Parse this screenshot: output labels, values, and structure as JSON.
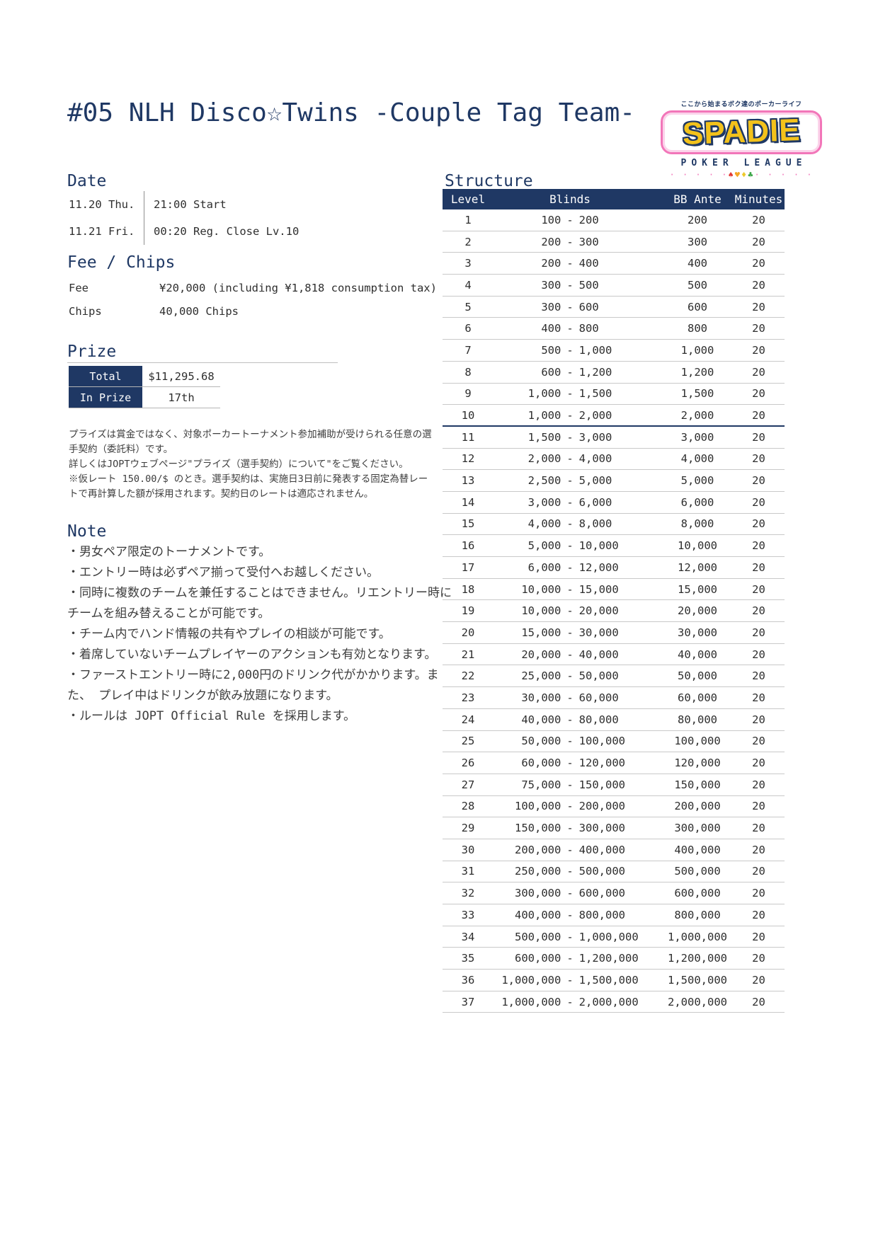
{
  "title": "#05 NLH Disco☆Twins -Couple Tag Team-",
  "colors": {
    "navy": "#1f3864",
    "logo_pink": "#f276b9",
    "logo_yellow": "#f3c21b",
    "row_line_gray": "#c9c9c9",
    "suit_spade": "#e23b34",
    "suit_heart": "#f5a623",
    "suit_diamond": "#edc92c",
    "suit_club": "#3aa546"
  },
  "logo": {
    "tagline": "ここから始まるボク達のポーカーライフ",
    "brand": "SPADIE",
    "subtitle": "POKER LEAGUE",
    "dots_left": "· · · · ·",
    "dots_right": "· · · · ·",
    "suits": [
      {
        "glyph": "♠",
        "color": "#e23b34"
      },
      {
        "glyph": "♥",
        "color": "#f5a623"
      },
      {
        "glyph": "♦",
        "color": "#edc92c"
      },
      {
        "glyph": "♣",
        "color": "#3aa546"
      }
    ]
  },
  "date": {
    "heading": "Date",
    "rows": [
      {
        "date": "11.20 Thu.",
        "time": "21:00 Start"
      },
      {
        "date": "11.21 Fri.",
        "time": "00:20 Reg. Close Lv.10"
      }
    ]
  },
  "fee_chips": {
    "heading": "Fee / Chips",
    "rows": [
      {
        "label": "Fee",
        "value": "¥20,000 (including ¥1,818 consumption tax)"
      },
      {
        "label": "Chips",
        "value": "40,000 Chips"
      }
    ]
  },
  "prize": {
    "heading": "Prize",
    "rows": [
      {
        "label": "Total",
        "value": "$11,295.68"
      },
      {
        "label": "In Prize",
        "value": "17th"
      }
    ],
    "disclaimer": [
      "プライズは賞金ではなく、対象ポーカートーナメント参加補助が受けられる任意の選手契約（委託料）です。",
      "詳しくはJOPTウェブページ\"プライズ（選手契約）について\"をご覧ください。",
      "※仮レート 150.00/$ のとき。選手契約は、実施日3日前に発表する固定為替レートで再計算した額が採用されます。契約日のレートは適応されません。"
    ]
  },
  "note": {
    "heading": "Note",
    "items": [
      "・男女ペア限定のトーナメントです。",
      "・エントリー時は必ずペア揃って受付へお越しください。",
      "・同時に複数のチームを兼任することはできません。リエントリー時にチームを組み替えることが可能です。",
      "・チーム内でハンド情報の共有やプレイの相談が可能です。",
      "・着席していないチームプレイヤーのアクションも有効となります。",
      "・ファーストエントリー時に2,000円のドリンク代がかかります。また、 プレイ中はドリンクが飲み放題になります。",
      "・ルールは JOPT Official Rule を採用します。"
    ]
  },
  "structure": {
    "heading": "Structure",
    "columns": {
      "level": "Level",
      "blinds": "Blinds",
      "ante": "BB Ante",
      "minutes": "Minutes"
    },
    "blinds_separator": "-",
    "reg_close_after_level": 10,
    "levels": [
      {
        "level": "1",
        "sb": "100",
        "bb": "200",
        "ante": "200",
        "minutes": "20"
      },
      {
        "level": "2",
        "sb": "200",
        "bb": "300",
        "ante": "300",
        "minutes": "20"
      },
      {
        "level": "3",
        "sb": "200",
        "bb": "400",
        "ante": "400",
        "minutes": "20"
      },
      {
        "level": "4",
        "sb": "300",
        "bb": "500",
        "ante": "500",
        "minutes": "20"
      },
      {
        "level": "5",
        "sb": "300",
        "bb": "600",
        "ante": "600",
        "minutes": "20"
      },
      {
        "level": "6",
        "sb": "400",
        "bb": "800",
        "ante": "800",
        "minutes": "20"
      },
      {
        "level": "7",
        "sb": "500",
        "bb": "1,000",
        "ante": "1,000",
        "minutes": "20"
      },
      {
        "level": "8",
        "sb": "600",
        "bb": "1,200",
        "ante": "1,200",
        "minutes": "20"
      },
      {
        "level": "9",
        "sb": "1,000",
        "bb": "1,500",
        "ante": "1,500",
        "minutes": "20"
      },
      {
        "level": "10",
        "sb": "1,000",
        "bb": "2,000",
        "ante": "2,000",
        "minutes": "20"
      },
      {
        "level": "11",
        "sb": "1,500",
        "bb": "3,000",
        "ante": "3,000",
        "minutes": "20"
      },
      {
        "level": "12",
        "sb": "2,000",
        "bb": "4,000",
        "ante": "4,000",
        "minutes": "20"
      },
      {
        "level": "13",
        "sb": "2,500",
        "bb": "5,000",
        "ante": "5,000",
        "minutes": "20"
      },
      {
        "level": "14",
        "sb": "3,000",
        "bb": "6,000",
        "ante": "6,000",
        "minutes": "20"
      },
      {
        "level": "15",
        "sb": "4,000",
        "bb": "8,000",
        "ante": "8,000",
        "minutes": "20"
      },
      {
        "level": "16",
        "sb": "5,000",
        "bb": "10,000",
        "ante": "10,000",
        "minutes": "20"
      },
      {
        "level": "17",
        "sb": "6,000",
        "bb": "12,000",
        "ante": "12,000",
        "minutes": "20"
      },
      {
        "level": "18",
        "sb": "10,000",
        "bb": "15,000",
        "ante": "15,000",
        "minutes": "20"
      },
      {
        "level": "19",
        "sb": "10,000",
        "bb": "20,000",
        "ante": "20,000",
        "minutes": "20"
      },
      {
        "level": "20",
        "sb": "15,000",
        "bb": "30,000",
        "ante": "30,000",
        "minutes": "20"
      },
      {
        "level": "21",
        "sb": "20,000",
        "bb": "40,000",
        "ante": "40,000",
        "minutes": "20"
      },
      {
        "level": "22",
        "sb": "25,000",
        "bb": "50,000",
        "ante": "50,000",
        "minutes": "20"
      },
      {
        "level": "23",
        "sb": "30,000",
        "bb": "60,000",
        "ante": "60,000",
        "minutes": "20"
      },
      {
        "level": "24",
        "sb": "40,000",
        "bb": "80,000",
        "ante": "80,000",
        "minutes": "20"
      },
      {
        "level": "25",
        "sb": "50,000",
        "bb": "100,000",
        "ante": "100,000",
        "minutes": "20"
      },
      {
        "level": "26",
        "sb": "60,000",
        "bb": "120,000",
        "ante": "120,000",
        "minutes": "20"
      },
      {
        "level": "27",
        "sb": "75,000",
        "bb": "150,000",
        "ante": "150,000",
        "minutes": "20"
      },
      {
        "level": "28",
        "sb": "100,000",
        "bb": "200,000",
        "ante": "200,000",
        "minutes": "20"
      },
      {
        "level": "29",
        "sb": "150,000",
        "bb": "300,000",
        "ante": "300,000",
        "minutes": "20"
      },
      {
        "level": "30",
        "sb": "200,000",
        "bb": "400,000",
        "ante": "400,000",
        "minutes": "20"
      },
      {
        "level": "31",
        "sb": "250,000",
        "bb": "500,000",
        "ante": "500,000",
        "minutes": "20"
      },
      {
        "level": "32",
        "sb": "300,000",
        "bb": "600,000",
        "ante": "600,000",
        "minutes": "20"
      },
      {
        "level": "33",
        "sb": "400,000",
        "bb": "800,000",
        "ante": "800,000",
        "minutes": "20"
      },
      {
        "level": "34",
        "sb": "500,000",
        "bb": "1,000,000",
        "ante": "1,000,000",
        "minutes": "20"
      },
      {
        "level": "35",
        "sb": "600,000",
        "bb": "1,200,000",
        "ante": "1,200,000",
        "minutes": "20"
      },
      {
        "level": "36",
        "sb": "1,000,000",
        "bb": "1,500,000",
        "ante": "1,500,000",
        "minutes": "20"
      },
      {
        "level": "37",
        "sb": "1,000,000",
        "bb": "2,000,000",
        "ante": "2,000,000",
        "minutes": "20"
      }
    ]
  }
}
